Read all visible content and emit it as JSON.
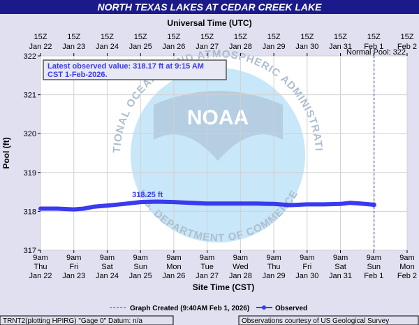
{
  "title": "NORTH TEXAS LAKES AT CEDAR CREEK LAKE",
  "top_axis_title": "Universal Time (UTC)",
  "bottom_axis_title": "Site Time (CST)",
  "y_axis_title": "Pool (ft)",
  "normal_pool_label": "Normal Pool: 322",
  "latest_box": {
    "line1": "Latest observed value: 318.17 ft at 9:15 AM",
    "line2": "CST 1-Feb-2026."
  },
  "peak_label": "318.25 ft",
  "watermark": {
    "outer_text": "NATIONAL OCEANIC AND ATMOSPHERIC ADMINISTRATION",
    "inner_text": "U.S. DEPARTMENT OF COMMERCE",
    "logo_text": "NOAA"
  },
  "legend": {
    "graph_created": "Graph Created (9:40AM Feb 1, 2026)",
    "observed": "Observed"
  },
  "footer": {
    "left": "TRNT2(plotting HPIRG) \"Gage 0\" Datum: n/a",
    "right": "Observations courtesy of US Geological Survey"
  },
  "colors": {
    "series": "#3a3af0",
    "title_bg": "#1a1a8a",
    "title_text": "#ffffff",
    "plot_bg": "#ffffff",
    "page_bg": "#e0e0f0",
    "watermark": "#a8d4f2",
    "watermark_text": "#9fb3c8"
  },
  "chart_data": {
    "type": "line",
    "ylim": [
      317,
      322
    ],
    "yticks": [
      317,
      318,
      319,
      320,
      321,
      322
    ],
    "xlim": [
      0,
      11
    ],
    "bottom_ticks": [
      {
        "x": 0,
        "l1": "9am",
        "l2": "Thu",
        "l3": "Jan 22"
      },
      {
        "x": 1,
        "l1": "9am",
        "l2": "Fri",
        "l3": "Jan 23"
      },
      {
        "x": 2,
        "l1": "9am",
        "l2": "Sat",
        "l3": "Jan 24"
      },
      {
        "x": 3,
        "l1": "9am",
        "l2": "Sun",
        "l3": "Jan 25"
      },
      {
        "x": 4,
        "l1": "9am",
        "l2": "Mon",
        "l3": "Jan 26"
      },
      {
        "x": 5,
        "l1": "9am",
        "l2": "Tue",
        "l3": "Jan 27"
      },
      {
        "x": 6,
        "l1": "9am",
        "l2": "Wed",
        "l3": "Jan 28"
      },
      {
        "x": 7,
        "l1": "9am",
        "l2": "Thu",
        "l3": "Jan 29"
      },
      {
        "x": 8,
        "l1": "9am",
        "l2": "Fri",
        "l3": "Jan 30"
      },
      {
        "x": 9,
        "l1": "9am",
        "l2": "Sat",
        "l3": "Jan 31"
      },
      {
        "x": 10,
        "l1": "9am",
        "l2": "Sun",
        "l3": "Feb 1"
      },
      {
        "x": 11,
        "l1": "9am",
        "l2": "Mon",
        "l3": "Feb 2"
      }
    ],
    "top_ticks": [
      {
        "x": 0,
        "l1": "15Z",
        "l2": "Jan 22"
      },
      {
        "x": 1,
        "l1": "15Z",
        "l2": "Jan 23"
      },
      {
        "x": 2,
        "l1": "15Z",
        "l2": "Jan 24"
      },
      {
        "x": 3,
        "l1": "15Z",
        "l2": "Jan 25"
      },
      {
        "x": 4,
        "l1": "15Z",
        "l2": "Jan 26"
      },
      {
        "x": 5,
        "l1": "15Z",
        "l2": "Jan 27"
      },
      {
        "x": 6,
        "l1": "15Z",
        "l2": "Jan 28"
      },
      {
        "x": 7,
        "l1": "15Z",
        "l2": "Jan 29"
      },
      {
        "x": 8,
        "l1": "15Z",
        "l2": "Jan 30"
      },
      {
        "x": 9,
        "l1": "15Z",
        "l2": "Jan 31"
      },
      {
        "x": 10,
        "l1": "15Z",
        "l2": "Feb 1"
      },
      {
        "x": 11,
        "l1": "15Z",
        "l2": "Feb 2"
      }
    ],
    "created_x": 10.01,
    "peak_x": 3.0,
    "series": [
      {
        "x": [
          0,
          0.5,
          1.0,
          1.3,
          1.6,
          2.0,
          2.5,
          3.0,
          3.5,
          4.0,
          4.5,
          5.0,
          5.5,
          6.0,
          6.5,
          7.0,
          7.5,
          8.0,
          8.5,
          9.0,
          9.3,
          9.6,
          10.0
        ],
        "y": [
          318.07,
          318.07,
          318.05,
          318.07,
          318.12,
          318.15,
          318.19,
          318.24,
          318.25,
          318.24,
          318.22,
          318.2,
          318.2,
          318.2,
          318.2,
          318.19,
          318.16,
          318.18,
          318.18,
          318.19,
          318.22,
          318.2,
          318.17
        ]
      }
    ]
  }
}
